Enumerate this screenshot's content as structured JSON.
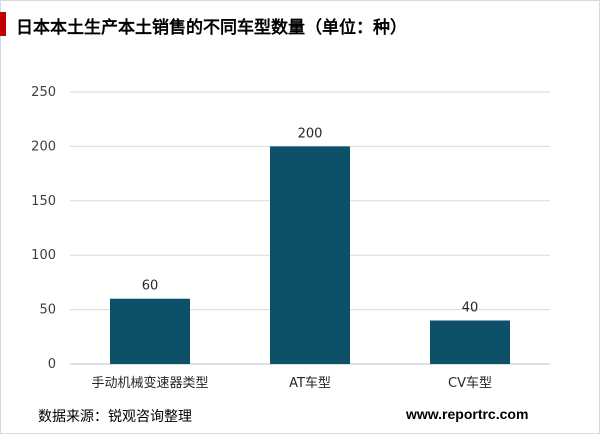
{
  "header": {
    "title": "日本本土生产本土销售的不同车型数量（单位：种）",
    "accent_color": "#c00000"
  },
  "chart_data": {
    "type": "bar",
    "categories": [
      "手动机械变速器类型",
      "AT车型",
      "CV车型"
    ],
    "values": [
      60,
      200,
      40
    ],
    "data_labels": [
      "60",
      "200",
      "40"
    ],
    "title": "",
    "xlabel": "",
    "ylabel": "",
    "ylim": [
      0,
      250
    ],
    "yticks": [
      0,
      50,
      100,
      150,
      200,
      250
    ],
    "grid": true,
    "legend": "none",
    "bar_color": "#0d5069"
  },
  "footer": {
    "source": "数据来源：锐观咨询整理",
    "website": "www.reportrc.com"
  }
}
